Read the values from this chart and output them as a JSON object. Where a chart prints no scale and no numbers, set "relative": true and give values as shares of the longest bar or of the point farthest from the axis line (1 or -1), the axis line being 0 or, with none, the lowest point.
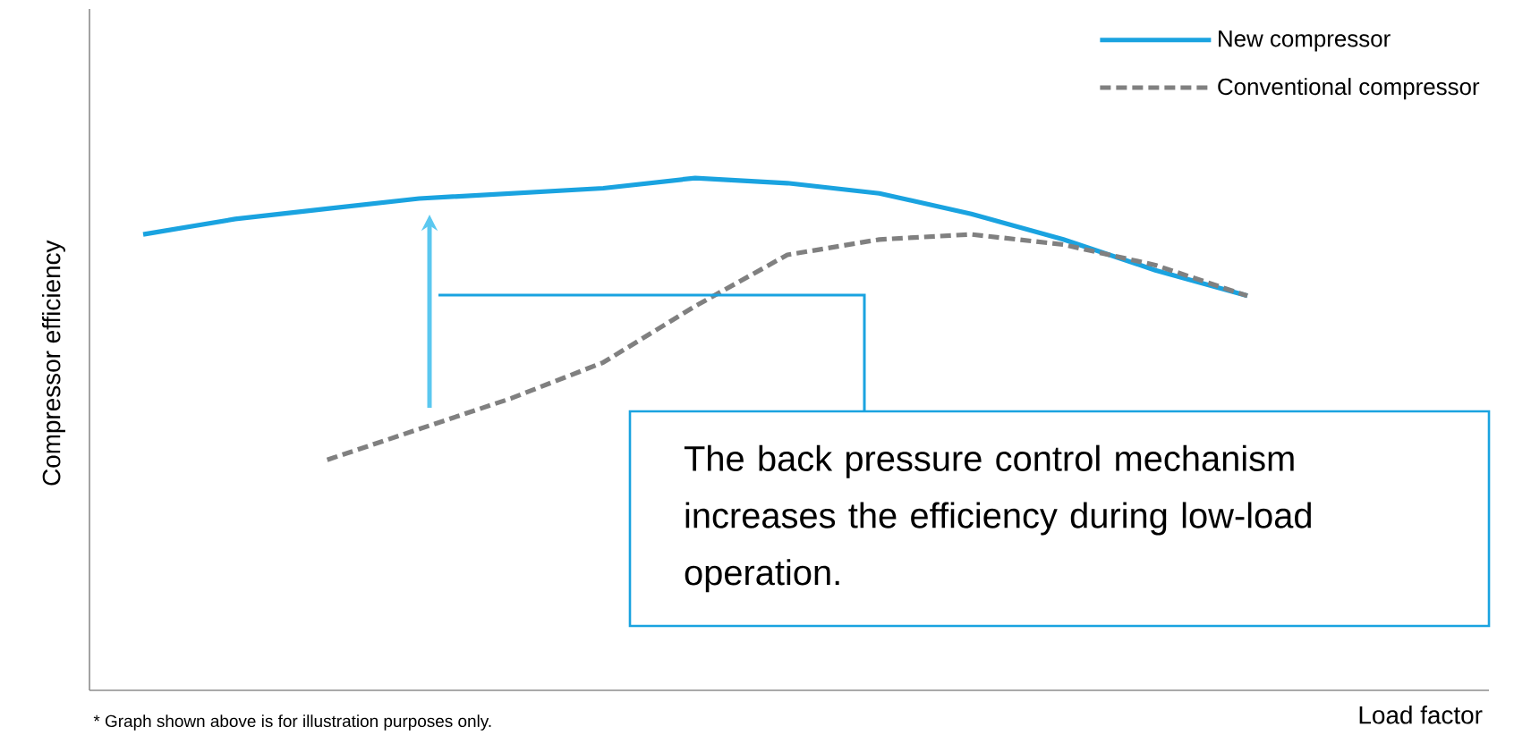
{
  "chart_data": {
    "type": "line",
    "relative": true,
    "ylabel": "Compressor efficiency",
    "xlabel": "Load factor",
    "categories": [
      null,
      null,
      null,
      null,
      null,
      null,
      null,
      null,
      null,
      null,
      null,
      null,
      null
    ],
    "series": [
      {
        "name": "New compressor",
        "color": "#1aa3e0",
        "line_style": "solid",
        "values": [
          0.89,
          0.92,
          0.94,
          0.96,
          0.97,
          0.98,
          1.0,
          0.99,
          0.97,
          0.93,
          0.88,
          0.82,
          0.77
        ]
      },
      {
        "name": "Conventional compressor",
        "color": "#808080",
        "line_style": "dashed",
        "values": [
          null,
          null,
          0.45,
          0.51,
          0.57,
          0.64,
          0.75,
          0.85,
          0.88,
          0.89,
          0.87,
          0.83,
          0.77
        ]
      }
    ],
    "legend": "top right",
    "marker": "none",
    "tick_labels": false,
    "annotations": [
      "The back pressure control mechanism increases the efficiency during low-load operation.",
      "* Graph shown above is for illustration purposes only."
    ]
  }
}
